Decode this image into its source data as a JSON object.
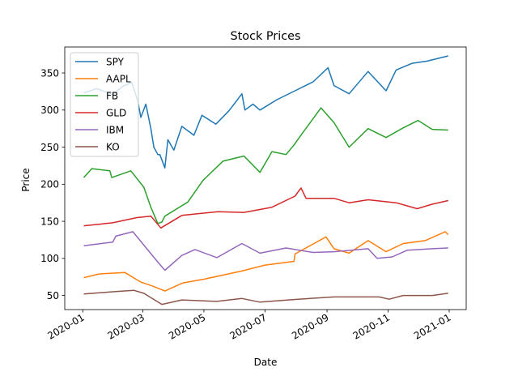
{
  "chart_data": {
    "type": "line",
    "title": "Stock Prices",
    "xlabel": "Date",
    "ylabel": "Price",
    "x_ticks": [
      "2020-01",
      "2020-03",
      "2020-05",
      "2020-07",
      "2020-09",
      "2020-11",
      "2021-01"
    ],
    "y_ticks": [
      50,
      100,
      150,
      200,
      250,
      300,
      350
    ],
    "xlim": [
      "2019-12-14",
      "2021-01-18"
    ],
    "ylim": [
      31,
      385
    ],
    "legend_position": "top-left",
    "grid": false,
    "series": [
      {
        "name": "SPY",
        "color": "#1f77b4",
        "points": [
          [
            "2020-01-02",
            323
          ],
          [
            "2020-01-15",
            329
          ],
          [
            "2020-01-31",
            321
          ],
          [
            "2020-02-10",
            332
          ],
          [
            "2020-02-19",
            337
          ],
          [
            "2020-02-25",
            312
          ],
          [
            "2020-02-28",
            290
          ],
          [
            "2020-03-04",
            308
          ],
          [
            "2020-03-09",
            275
          ],
          [
            "2020-03-12",
            250
          ],
          [
            "2020-03-16",
            240
          ],
          [
            "2020-03-18",
            240
          ],
          [
            "2020-03-23",
            222
          ],
          [
            "2020-03-26",
            260
          ],
          [
            "2020-04-01",
            246
          ],
          [
            "2020-04-09",
            278
          ],
          [
            "2020-04-21",
            266
          ],
          [
            "2020-04-29",
            293
          ],
          [
            "2020-05-13",
            281
          ],
          [
            "2020-05-26",
            299
          ],
          [
            "2020-06-08",
            322
          ],
          [
            "2020-06-11",
            300
          ],
          [
            "2020-06-19",
            308
          ],
          [
            "2020-06-26",
            300
          ],
          [
            "2020-07-13",
            314
          ],
          [
            "2020-07-31",
            326
          ],
          [
            "2020-08-18",
            338
          ],
          [
            "2020-09-02",
            357
          ],
          [
            "2020-09-08",
            333
          ],
          [
            "2020-09-23",
            322
          ],
          [
            "2020-10-12",
            352
          ],
          [
            "2020-10-30",
            326
          ],
          [
            "2020-11-09",
            354
          ],
          [
            "2020-11-25",
            363
          ],
          [
            "2020-12-10",
            366
          ],
          [
            "2020-12-31",
            373
          ]
        ]
      },
      {
        "name": "AAPL",
        "color": "#ff7f0e",
        "points": [
          [
            "2020-01-02",
            74
          ],
          [
            "2020-01-17",
            79
          ],
          [
            "2020-02-12",
            81
          ],
          [
            "2020-02-28",
            68
          ],
          [
            "2020-03-12",
            62
          ],
          [
            "2020-03-23",
            56
          ],
          [
            "2020-04-10",
            67
          ],
          [
            "2020-05-01",
            72
          ],
          [
            "2020-06-08",
            83
          ],
          [
            "2020-07-01",
            91
          ],
          [
            "2020-07-30",
            96
          ],
          [
            "2020-07-31",
            106
          ],
          [
            "2020-08-31",
            129
          ],
          [
            "2020-09-08",
            113
          ],
          [
            "2020-09-23",
            107
          ],
          [
            "2020-10-12",
            124
          ],
          [
            "2020-10-30",
            109
          ],
          [
            "2020-11-16",
            120
          ],
          [
            "2020-12-08",
            124
          ],
          [
            "2020-12-28",
            136
          ],
          [
            "2020-12-31",
            132
          ]
        ]
      },
      {
        "name": "FB",
        "color": "#2ca02c",
        "points": [
          [
            "2020-01-02",
            209
          ],
          [
            "2020-01-10",
            221
          ],
          [
            "2020-01-28",
            218
          ],
          [
            "2020-01-30",
            209
          ],
          [
            "2020-02-18",
            218
          ],
          [
            "2020-03-02",
            196
          ],
          [
            "2020-03-09",
            169
          ],
          [
            "2020-03-16",
            147
          ],
          [
            "2020-03-20",
            149
          ],
          [
            "2020-03-23",
            157
          ],
          [
            "2020-04-15",
            176
          ],
          [
            "2020-04-30",
            205
          ],
          [
            "2020-05-20",
            231
          ],
          [
            "2020-06-10",
            238
          ],
          [
            "2020-06-26",
            216
          ],
          [
            "2020-07-08",
            244
          ],
          [
            "2020-07-22",
            240
          ],
          [
            "2020-07-30",
            253
          ],
          [
            "2020-08-07",
            268
          ],
          [
            "2020-08-26",
            303
          ],
          [
            "2020-09-08",
            283
          ],
          [
            "2020-09-23",
            250
          ],
          [
            "2020-10-12",
            275
          ],
          [
            "2020-10-30",
            263
          ],
          [
            "2020-11-16",
            276
          ],
          [
            "2020-12-01",
            286
          ],
          [
            "2020-12-15",
            274
          ],
          [
            "2020-12-31",
            273
          ]
        ]
      },
      {
        "name": "GLD",
        "color": "#d62728",
        "points": [
          [
            "2020-01-02",
            144
          ],
          [
            "2020-01-31",
            148
          ],
          [
            "2020-02-24",
            155
          ],
          [
            "2020-03-09",
            157
          ],
          [
            "2020-03-19",
            141
          ],
          [
            "2020-04-09",
            158
          ],
          [
            "2020-05-15",
            163
          ],
          [
            "2020-06-10",
            162
          ],
          [
            "2020-07-08",
            169
          ],
          [
            "2020-07-31",
            184
          ],
          [
            "2020-08-06",
            195
          ],
          [
            "2020-08-11",
            181
          ],
          [
            "2020-09-08",
            181
          ],
          [
            "2020-09-23",
            175
          ],
          [
            "2020-10-12",
            179
          ],
          [
            "2020-11-09",
            175
          ],
          [
            "2020-11-30",
            167
          ],
          [
            "2020-12-15",
            173
          ],
          [
            "2020-12-31",
            178
          ]
        ]
      },
      {
        "name": "IBM",
        "color": "#9467bd",
        "points": [
          [
            "2020-01-02",
            117
          ],
          [
            "2020-01-31",
            122
          ],
          [
            "2020-02-03",
            130
          ],
          [
            "2020-02-20",
            136
          ],
          [
            "2020-03-02",
            118
          ],
          [
            "2020-03-16",
            95
          ],
          [
            "2020-03-23",
            84
          ],
          [
            "2020-04-09",
            104
          ],
          [
            "2020-04-22",
            112
          ],
          [
            "2020-05-14",
            101
          ],
          [
            "2020-06-08",
            120
          ],
          [
            "2020-06-26",
            107
          ],
          [
            "2020-07-22",
            114
          ],
          [
            "2020-08-18",
            108
          ],
          [
            "2020-09-08",
            109
          ],
          [
            "2020-10-12",
            113
          ],
          [
            "2020-10-21",
            100
          ],
          [
            "2020-11-05",
            102
          ],
          [
            "2020-11-20",
            111
          ],
          [
            "2020-12-15",
            113
          ],
          [
            "2020-12-31",
            114
          ]
        ]
      },
      {
        "name": "KO",
        "color": "#8c564b",
        "points": [
          [
            "2020-01-02",
            52
          ],
          [
            "2020-01-31",
            55
          ],
          [
            "2020-02-21",
            57
          ],
          [
            "2020-03-02",
            53
          ],
          [
            "2020-03-20",
            38
          ],
          [
            "2020-04-09",
            44
          ],
          [
            "2020-05-14",
            42
          ],
          [
            "2020-06-08",
            46
          ],
          [
            "2020-06-26",
            41
          ],
          [
            "2020-08-03",
            45
          ],
          [
            "2020-09-08",
            48
          ],
          [
            "2020-10-23",
            48
          ],
          [
            "2020-11-02",
            45
          ],
          [
            "2020-11-16",
            50
          ],
          [
            "2020-12-15",
            50
          ],
          [
            "2020-12-31",
            53
          ]
        ]
      }
    ]
  }
}
